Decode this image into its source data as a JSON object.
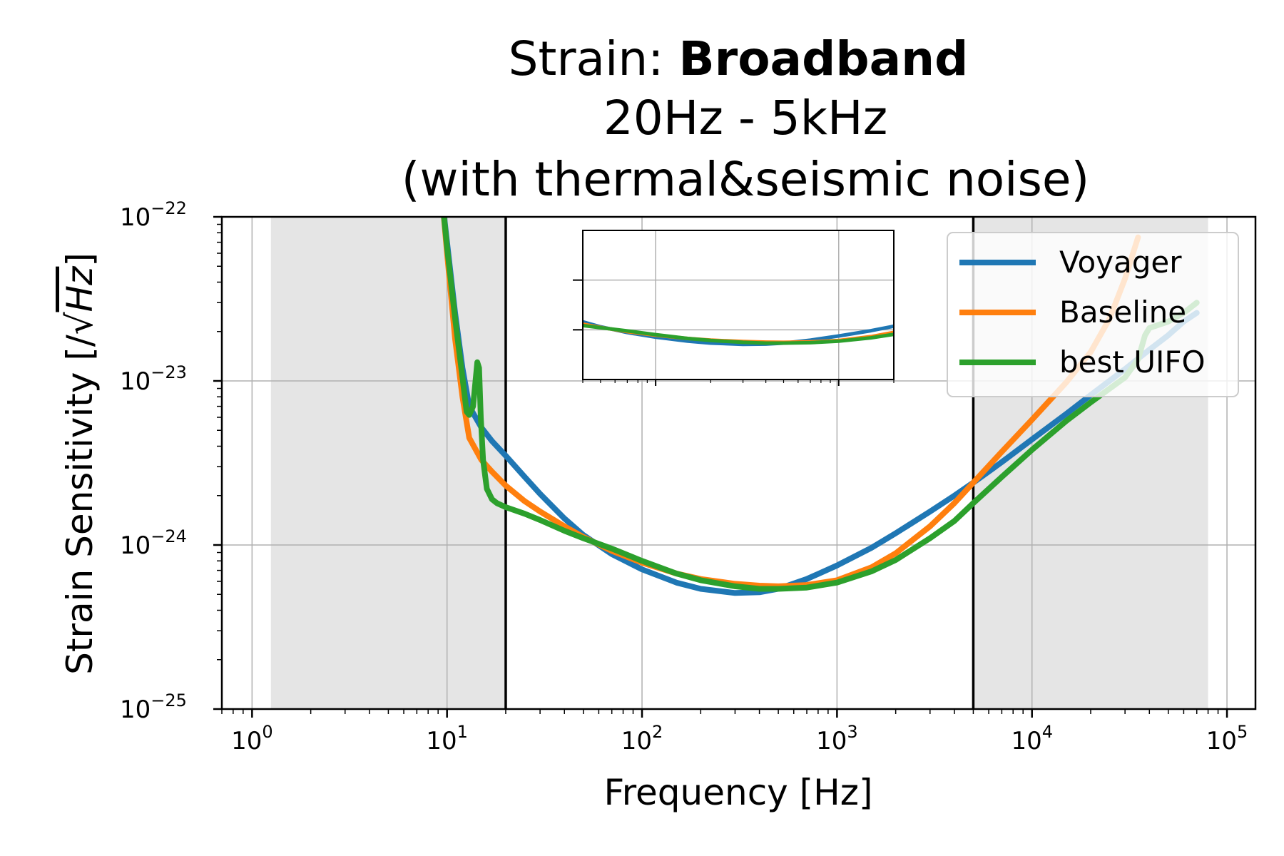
{
  "chart_data": {
    "type": "line",
    "title": {
      "prefix": "Strain: ",
      "bold": "Broadband",
      "line2": "20Hz - 5kHz",
      "line3": "(with thermal&seismic noise)"
    },
    "xlabel": "Frequency [Hz]",
    "ylabel": {
      "prefix": "Strain Sensitivity [/",
      "sqrt_symbol": "√",
      "unit": "Hz",
      "suffix": "]"
    },
    "x_scale": "log",
    "y_scale": "log",
    "xlim": [
      0.7,
      140000
    ],
    "ylim": [
      1e-25,
      1e-22
    ],
    "grid": true,
    "x_ticks": [
      {
        "value": 1,
        "base": "10",
        "exp": "0"
      },
      {
        "value": 10,
        "base": "10",
        "exp": "1"
      },
      {
        "value": 100,
        "base": "10",
        "exp": "2"
      },
      {
        "value": 1000,
        "base": "10",
        "exp": "3"
      },
      {
        "value": 10000,
        "base": "10",
        "exp": "4"
      },
      {
        "value": 100000,
        "base": "10",
        "exp": "5"
      }
    ],
    "y_ticks": [
      {
        "value": 1e-25,
        "base": "10",
        "exp": "−25"
      },
      {
        "value": 1e-24,
        "base": "10",
        "exp": "−24"
      },
      {
        "value": 1e-23,
        "base": "10",
        "exp": "−23"
      },
      {
        "value": 1e-22,
        "base": "10",
        "exp": "−22"
      }
    ],
    "shaded_regions": [
      {
        "x0": 1.25,
        "x1": 20
      },
      {
        "x0": 5000,
        "x1": 80000
      }
    ],
    "vertical_lines": [
      20,
      5000
    ],
    "legend_position": "top-right",
    "colors": {
      "voyager": "#1f77b4",
      "baseline": "#ff7f0e",
      "uifo": "#2ca02c",
      "shade": "#e5e5e5",
      "grid": "#b0b0b0"
    },
    "series": [
      {
        "name": "Voyager",
        "color": "#1f77b4",
        "x": [
          9.5,
          10,
          11,
          12,
          13,
          15,
          17,
          20,
          25,
          30,
          40,
          50,
          70,
          100,
          150,
          200,
          300,
          400,
          500,
          700,
          1000,
          1500,
          2000,
          3000,
          4000,
          5000,
          7000,
          10000,
          15000,
          20000,
          30000,
          40000,
          50000,
          60000,
          70000
        ],
        "y": [
          1.2e-22,
          7e-23,
          2.6e-23,
          1.2e-23,
          7e-24,
          5.2e-24,
          4.3e-24,
          3.5e-24,
          2.6e-24,
          2.05e-24,
          1.45e-24,
          1.15e-24,
          8.8e-25,
          7.1e-25,
          5.9e-25,
          5.4e-25,
          5.1e-25,
          5.15e-25,
          5.4e-25,
          6.2e-25,
          7.5e-25,
          9.6e-25,
          1.18e-24,
          1.6e-24,
          2e-24,
          2.4e-24,
          3.2e-24,
          4.4e-24,
          6.3e-24,
          8.2e-24,
          1.18e-23,
          1.55e-23,
          1.9e-23,
          2.3e-23,
          2.6e-23
        ]
      },
      {
        "name": "Baseline",
        "color": "#ff7f0e",
        "x": [
          9.5,
          10,
          11,
          12,
          13,
          15,
          17,
          20,
          25,
          30,
          40,
          50,
          70,
          100,
          150,
          200,
          300,
          400,
          500,
          700,
          1000,
          1500,
          2000,
          3000,
          4000,
          5000,
          7000,
          10000,
          15000,
          20000,
          25000,
          30000,
          35000
        ],
        "y": [
          1.2e-22,
          6e-23,
          1.8e-23,
          8e-24,
          4.5e-24,
          3.3e-24,
          2.8e-24,
          2.3e-24,
          1.85e-24,
          1.6e-24,
          1.3e-24,
          1.12e-24,
          9.2e-25,
          7.8e-25,
          6.7e-25,
          6.2e-25,
          5.8e-25,
          5.65e-25,
          5.6e-25,
          5.7e-25,
          6.1e-25,
          7.3e-25,
          8.9e-25,
          1.3e-24,
          1.8e-24,
          2.4e-24,
          3.7e-24,
          5.8e-24,
          9.8e-24,
          1.5e-23,
          2.4e-23,
          4.2e-23,
          7.5e-23
        ]
      },
      {
        "name": "best UIFO",
        "color": "#2ca02c",
        "x": [
          9.5,
          10,
          11,
          12,
          12.6,
          13,
          13.6,
          14.0,
          14.3,
          14.6,
          14.9,
          15.3,
          16,
          17,
          18,
          20,
          25,
          30,
          40,
          50,
          70,
          100,
          150,
          200,
          300,
          400,
          500,
          700,
          1000,
          1500,
          2000,
          3000,
          4000,
          5000,
          7000,
          10000,
          15000,
          20000,
          30000,
          35000,
          38000,
          40000,
          50000,
          60000,
          70000
        ],
        "y": [
          1.2e-22,
          6.5e-23,
          2.4e-23,
          1.05e-23,
          6.5e-24,
          6.2e-24,
          7e-24,
          1e-23,
          1.3e-23,
          1.2e-23,
          6e-24,
          3.3e-24,
          2.2e-24,
          1.9e-24,
          1.8e-24,
          1.7e-24,
          1.55e-24,
          1.42e-24,
          1.22e-24,
          1.1e-24,
          9.5e-25,
          8e-25,
          6.7e-25,
          6.1e-25,
          5.6e-25,
          5.4e-25,
          5.4e-25,
          5.5e-25,
          5.9e-25,
          6.9e-25,
          8.1e-25,
          1.1e-24,
          1.4e-24,
          1.8e-24,
          2.6e-24,
          3.8e-24,
          5.7e-24,
          7.4e-24,
          1.05e-23,
          1.35e-23,
          1.9e-23,
          2.1e-23,
          2.3e-23,
          2.6e-23,
          3e-23
        ]
      }
    ],
    "inset": {
      "description_hidden": true,
      "xlim": [
        40,
        2000
      ],
      "ylim": [
        1e-25,
        1e-22
      ],
      "shaded_regions": [
        {
          "x0": 1.25,
          "x1": 20
        },
        {
          "x0": 5000,
          "x1": 80000
        }
      ],
      "vertical_lines": [
        20,
        5000
      ]
    }
  }
}
